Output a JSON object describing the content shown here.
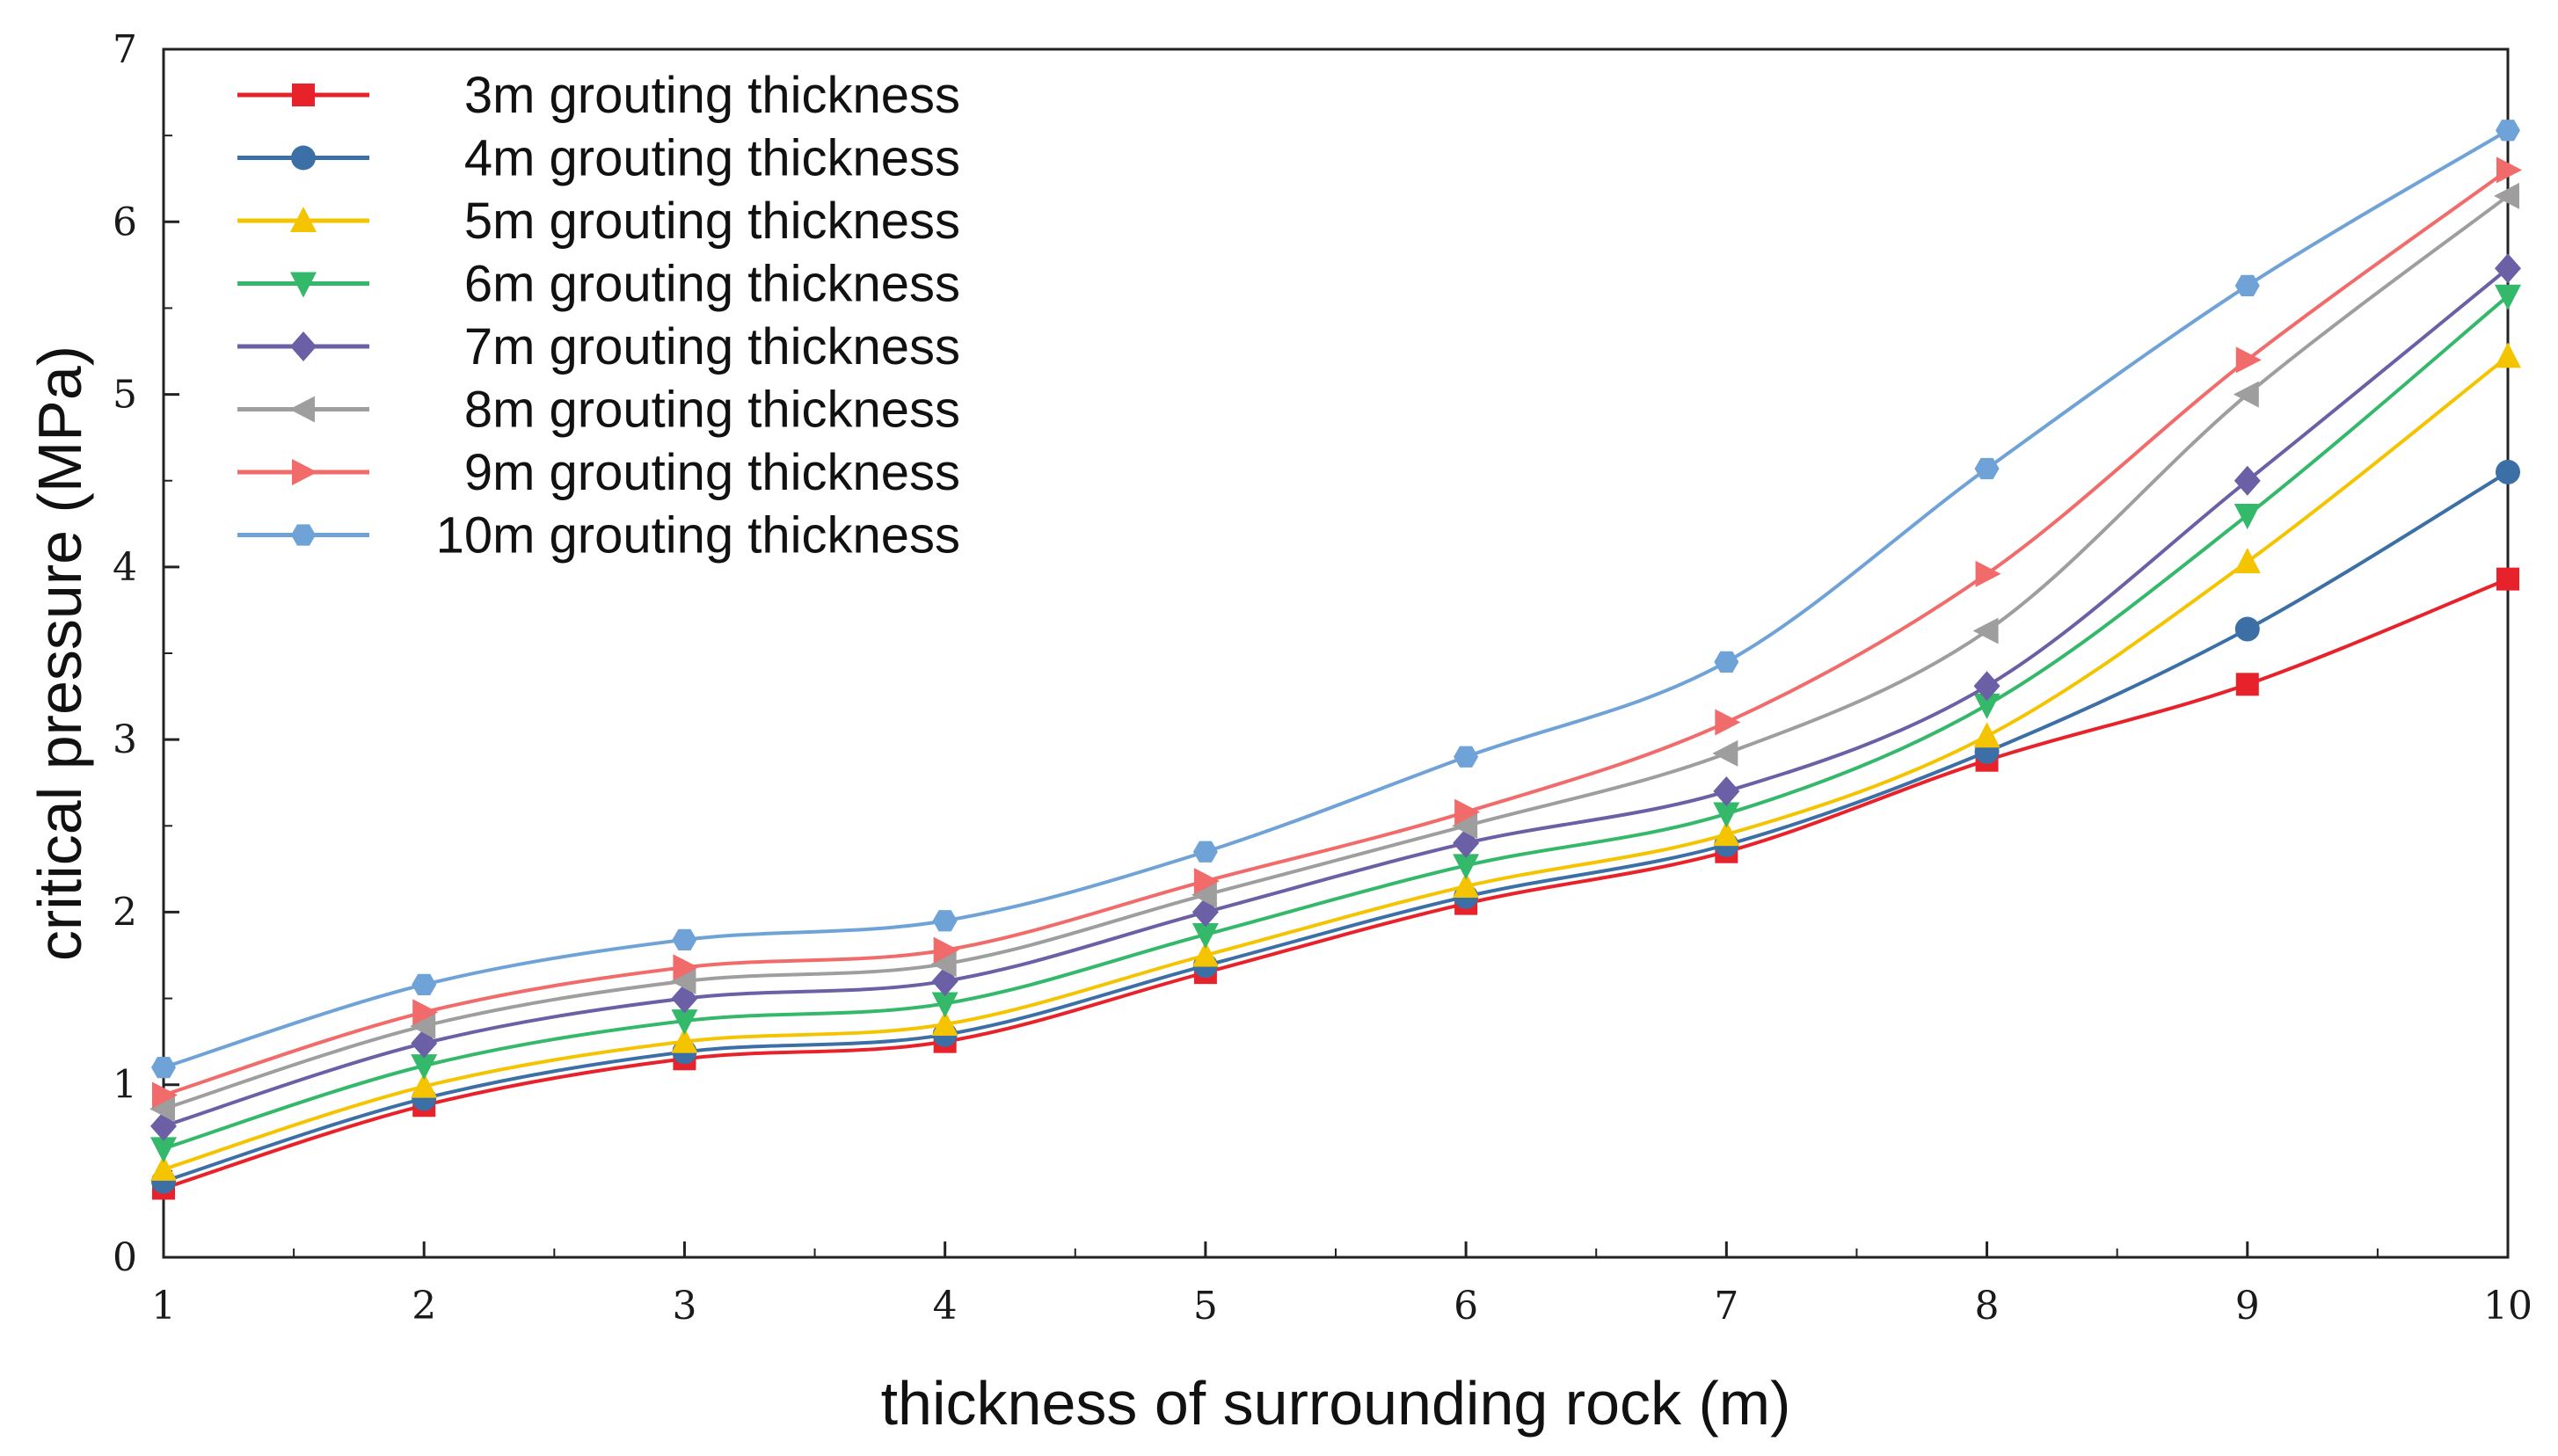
{
  "chart_data": {
    "type": "line",
    "title": "",
    "xlabel": "thickness of surrounding rock (m)",
    "ylabel": "critical pressure (MPa)",
    "xlim": [
      1,
      10
    ],
    "ylim": [
      0,
      7
    ],
    "x": [
      1,
      2,
      3,
      4,
      5,
      6,
      7,
      8,
      9,
      10
    ],
    "xticks": [
      "1",
      "2",
      "3",
      "4",
      "5",
      "6",
      "7",
      "8",
      "9",
      "10"
    ],
    "yticks": [
      "0",
      "1",
      "2",
      "3",
      "4",
      "5",
      "6",
      "7"
    ],
    "grid": false,
    "legend_position": "top-left",
    "series": [
      {
        "name": "3m grouting thickness",
        "color": "#e8222a",
        "marker": "square",
        "values": [
          0.4,
          0.88,
          1.15,
          1.25,
          1.65,
          2.05,
          2.35,
          2.88,
          3.32,
          3.93
        ]
      },
      {
        "name": "4m grouting thickness",
        "color": "#3c6fa6",
        "marker": "circle",
        "values": [
          0.44,
          0.92,
          1.19,
          1.29,
          1.69,
          2.09,
          2.39,
          2.93,
          3.64,
          4.55
        ]
      },
      {
        "name": "5m grouting thickness",
        "color": "#f5c400",
        "marker": "triangle-up",
        "values": [
          0.51,
          0.99,
          1.25,
          1.35,
          1.75,
          2.15,
          2.45,
          3.02,
          4.03,
          5.22
        ]
      },
      {
        "name": "6m grouting thickness",
        "color": "#34b86a",
        "marker": "triangle-down",
        "values": [
          0.63,
          1.11,
          1.37,
          1.47,
          1.87,
          2.27,
          2.57,
          3.2,
          4.3,
          5.57
        ]
      },
      {
        "name": "7m grouting thickness",
        "color": "#6b5fa6",
        "marker": "diamond",
        "values": [
          0.76,
          1.24,
          1.5,
          1.6,
          2.0,
          2.4,
          2.7,
          3.31,
          4.5,
          5.73
        ]
      },
      {
        "name": "8m grouting thickness",
        "color": "#9e9e9e",
        "marker": "triangle-left",
        "values": [
          0.86,
          1.34,
          1.6,
          1.7,
          2.1,
          2.5,
          2.92,
          3.63,
          5.0,
          6.15
        ]
      },
      {
        "name": "9m grouting thickness",
        "color": "#f26b6b",
        "marker": "triangle-right",
        "values": [
          0.94,
          1.42,
          1.68,
          1.78,
          2.18,
          2.58,
          3.1,
          3.96,
          5.2,
          6.3
        ]
      },
      {
        "name": "10m grouting thickness",
        "color": "#6fa3d8",
        "marker": "hexagon",
        "values": [
          1.1,
          1.58,
          1.84,
          1.95,
          2.35,
          2.9,
          3.45,
          4.57,
          5.63,
          6.53
        ]
      }
    ]
  }
}
